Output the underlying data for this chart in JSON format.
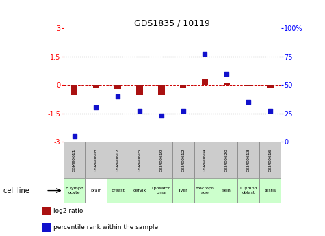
{
  "title": "GDS1835 / 10119",
  "gsm_labels": [
    "GSM90611",
    "GSM90618",
    "GSM90617",
    "GSM90615",
    "GSM90619",
    "GSM90612",
    "GSM90614",
    "GSM90620",
    "GSM90613",
    "GSM90616"
  ],
  "cell_line_labels": [
    "B lymph\nocyte",
    "brain",
    "breast",
    "cervix",
    "liposarco\noma",
    "liver",
    "macroph\nage",
    "skin",
    "T lymph\noblast",
    "testis"
  ],
  "cell_line_colors": [
    "#ccffcc",
    "#ffffff",
    "#ccffcc",
    "#ccffcc",
    "#ccffcc",
    "#ccffcc",
    "#ccffcc",
    "#ccffcc",
    "#ccffcc",
    "#ccffcc"
  ],
  "log2_ratio": [
    -0.55,
    -0.12,
    -0.22,
    -0.55,
    -0.52,
    -0.18,
    0.28,
    0.12,
    -0.05,
    -0.12
  ],
  "percentile_rank": [
    5,
    30,
    40,
    27,
    23,
    27,
    77,
    60,
    35,
    27
  ],
  "ylim_left": [
    -3,
    3
  ],
  "ylim_right": [
    0,
    100
  ],
  "yticks_left": [
    -3,
    -1.5,
    0,
    1.5,
    3
  ],
  "yticks_right": [
    0,
    25,
    50,
    75,
    100
  ],
  "bar_color": "#aa1111",
  "dot_color": "#1111cc",
  "hline_color": "#cc0000",
  "dotline_color": "#000000",
  "bg_plot": "#ffffff",
  "bg_gsm": "#cccccc",
  "legend_labels": [
    "log2 ratio",
    "percentile rank within the sample"
  ],
  "xlabel_left": "cell line"
}
